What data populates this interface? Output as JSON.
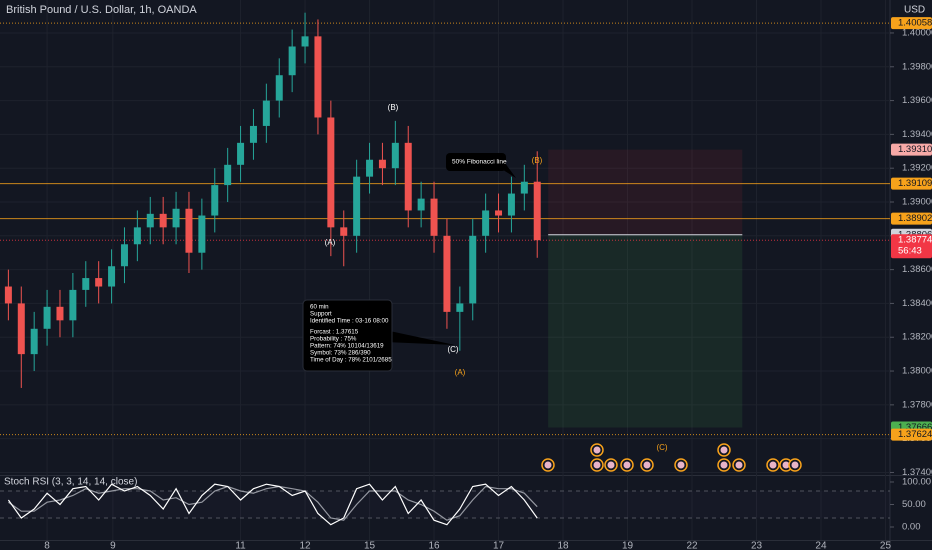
{
  "chart_data": [
    {
      "type": "candlestick",
      "title": "British Pound / U.S. Dollar, 1h, OANDA",
      "currency": "USD",
      "up_color": "#26a69a",
      "down_color": "#ef5350",
      "x": [
        -0.6,
        -0.4,
        -0.2,
        0.0,
        0.2,
        0.4,
        0.6,
        0.8,
        1.0,
        1.2,
        1.4,
        1.6,
        1.8,
        2.0,
        2.2,
        2.4,
        2.6,
        2.8,
        3.0,
        3.2,
        3.4,
        3.6,
        3.8,
        4.0,
        4.2,
        4.4,
        4.6,
        4.8,
        5.0,
        5.2,
        5.4,
        5.6,
        5.8,
        6.0,
        6.2,
        6.4,
        6.6,
        6.8,
        7.0,
        7.2,
        7.4,
        7.6
      ],
      "open": [
        1.385,
        1.384,
        1.381,
        1.3825,
        1.3838,
        1.383,
        1.3848,
        1.3855,
        1.385,
        1.3862,
        1.3875,
        1.3885,
        1.3893,
        1.3885,
        1.3896,
        1.387,
        1.3892,
        1.391,
        1.3922,
        1.3935,
        1.3945,
        1.396,
        1.3975,
        1.3992,
        1.3998,
        1.395,
        1.3885,
        1.388,
        1.3915,
        1.3925,
        1.392,
        1.3935,
        1.3895,
        1.3902,
        1.388,
        1.3835,
        1.384,
        1.388,
        1.3895,
        1.3892,
        1.3905,
        1.3912
      ],
      "high": [
        1.386,
        1.385,
        1.3835,
        1.3848,
        1.3848,
        1.3858,
        1.3865,
        1.3865,
        1.3872,
        1.3885,
        1.3895,
        1.3903,
        1.3903,
        1.3906,
        1.3906,
        1.3902,
        1.392,
        1.3932,
        1.3945,
        1.3955,
        1.397,
        1.3985,
        1.4002,
        1.4012,
        1.4008,
        1.396,
        1.3895,
        1.3925,
        1.3935,
        1.3935,
        1.3948,
        1.3945,
        1.3912,
        1.3912,
        1.389,
        1.385,
        1.389,
        1.3905,
        1.3905,
        1.3915,
        1.3922,
        1.393
      ],
      "low": [
        1.383,
        1.379,
        1.38,
        1.3815,
        1.382,
        1.382,
        1.3838,
        1.384,
        1.384,
        1.3852,
        1.3865,
        1.3875,
        1.3875,
        1.3875,
        1.3858,
        1.386,
        1.3882,
        1.39,
        1.3912,
        1.3925,
        1.3935,
        1.395,
        1.3965,
        1.3982,
        1.394,
        1.3868,
        1.3862,
        1.387,
        1.3905,
        1.391,
        1.391,
        1.3885,
        1.3885,
        1.387,
        1.3825,
        1.3812,
        1.383,
        1.387,
        1.3882,
        1.3882,
        1.3895,
        1.3867
      ],
      "close": [
        1.384,
        1.381,
        1.3825,
        1.3838,
        1.383,
        1.3848,
        1.3855,
        1.385,
        1.3862,
        1.3875,
        1.3885,
        1.3893,
        1.3885,
        1.3896,
        1.387,
        1.3892,
        1.391,
        1.3922,
        1.3935,
        1.3945,
        1.396,
        1.3975,
        1.3992,
        1.3998,
        1.395,
        1.3885,
        1.388,
        1.3915,
        1.3925,
        1.392,
        1.3935,
        1.3895,
        1.3902,
        1.388,
        1.3835,
        1.384,
        1.388,
        1.3895,
        1.3892,
        1.3905,
        1.3912,
        1.38774
      ],
      "xlim": [
        -0.73,
        13.07
      ],
      "xticks": [
        {
          "value": 0,
          "label": "8"
        },
        {
          "value": 1.02,
          "label": "9"
        },
        {
          "value": 3,
          "label": "11"
        },
        {
          "value": 4,
          "label": "12"
        },
        {
          "value": 5,
          "label": "15"
        },
        {
          "value": 6,
          "label": "16"
        },
        {
          "value": 7,
          "label": "17"
        },
        {
          "value": 8,
          "label": "18"
        },
        {
          "value": 9,
          "label": "19"
        },
        {
          "value": 10,
          "label": "22"
        },
        {
          "value": 11,
          "label": "23"
        },
        {
          "value": 12,
          "label": "24"
        },
        {
          "value": 13,
          "label": "25"
        }
      ],
      "ylim": [
        1.37385,
        1.40195
      ],
      "yticks": [
        {
          "value": 1.374,
          "label": "1.37400"
        },
        {
          "value": 1.376,
          "label": "1.37600"
        },
        {
          "value": 1.378,
          "label": "1.37800"
        },
        {
          "value": 1.38,
          "label": "1.38000"
        },
        {
          "value": 1.382,
          "label": "1.38200"
        },
        {
          "value": 1.384,
          "label": "1.38400"
        },
        {
          "value": 1.386,
          "label": "1.38600"
        },
        {
          "value": 1.388,
          "label": "1.38800"
        },
        {
          "value": 1.39,
          "label": "1.39000"
        },
        {
          "value": 1.392,
          "label": "1.39200"
        },
        {
          "value": 1.394,
          "label": "1.39400"
        },
        {
          "value": 1.396,
          "label": "1.39600"
        },
        {
          "value": 1.398,
          "label": "1.39800"
        },
        {
          "value": 1.4,
          "label": "1.40000"
        }
      ],
      "price_lines": [
        {
          "value": 1.40058,
          "label": "1.40058",
          "color": "#f7a21b",
          "text_color": "#131722",
          "line": "dotted"
        },
        {
          "value": 1.3931,
          "label": "1.39310",
          "color": "#f7a9a7",
          "text_color": "#131722",
          "line": "none"
        },
        {
          "value": 1.39109,
          "label": "1.39109",
          "color": "#f7a21b",
          "text_color": "#131722",
          "line": "solid"
        },
        {
          "value": 1.38902,
          "label": "1.38902",
          "color": "#f7a21b",
          "text_color": "#131722",
          "line": "solid"
        },
        {
          "value": 1.38806,
          "label": "1.38806",
          "color": "#d1d4dc",
          "text_color": "#131722",
          "line": "none"
        },
        {
          "value": 1.38774,
          "label": "1.38774",
          "color": "#f23645",
          "text_color": "#ffffff",
          "line": "dotted",
          "countdown": "56:43"
        },
        {
          "value": 1.37666,
          "label": "1.37666",
          "color": "#4caf50",
          "text_color": "#131722",
          "line": "none"
        },
        {
          "value": 1.37624,
          "label": "1.37624",
          "color": "#f7a21b",
          "text_color": "#131722",
          "line": "dotted"
        }
      ],
      "position": {
        "entry": 1.38806,
        "stop": 1.3931,
        "target": 1.37666,
        "from": 7.77,
        "to": 10.78
      },
      "annotations": [
        {
          "text": "(B)",
          "color": "#ffffff"
        },
        {
          "text": "(A)",
          "color": "#ffffff"
        },
        {
          "text": "(C)",
          "color": "#ffffff"
        },
        {
          "text": "(B)",
          "color": "#f7a21b"
        },
        {
          "text": "(A)",
          "color": "#f7a21b"
        },
        {
          "text": "(C)",
          "color": "#f7a21b"
        }
      ],
      "callouts": [
        {
          "lines": [
            "50% Fibonacci line"
          ]
        },
        {
          "lines": [
            "60 min",
            "Support",
            "Identified Time : 03-16 08:00",
            "Forcast : 1.37615",
            "Probability : 75%",
            "Pattern: 74% 10104/13619",
            "Symbol: 73% 286/390",
            "Time of Day : 78% 2101/2685"
          ]
        }
      ]
    },
    {
      "type": "line",
      "title": "Stoch RSI (3, 3, 14, 14, close)",
      "x": [
        -0.6,
        -0.4,
        -0.2,
        0.0,
        0.2,
        0.4,
        0.6,
        0.8,
        1.0,
        1.2,
        1.4,
        1.6,
        1.8,
        2.0,
        2.2,
        2.4,
        2.6,
        2.8,
        3.0,
        3.2,
        3.4,
        3.6,
        3.8,
        4.0,
        4.2,
        4.4,
        4.6,
        4.8,
        5.0,
        5.2,
        5.4,
        5.6,
        5.8,
        6.0,
        6.2,
        6.4,
        6.6,
        6.8,
        7.0,
        7.2,
        7.4,
        7.6
      ],
      "series": [
        {
          "color": "#ffffff",
          "values": [
            60,
            20,
            40,
            75,
            50,
            85,
            90,
            60,
            95,
            80,
            90,
            70,
            40,
            85,
            30,
            70,
            95,
            90,
            60,
            85,
            95,
            90,
            70,
            80,
            30,
            5,
            20,
            85,
            95,
            60,
            90,
            30,
            60,
            15,
            5,
            40,
            90,
            95,
            70,
            90,
            60,
            20
          ]
        },
        {
          "color": "#9598a1",
          "values": [
            55,
            35,
            35,
            55,
            60,
            70,
            85,
            75,
            80,
            85,
            85,
            80,
            60,
            65,
            50,
            55,
            80,
            90,
            80,
            75,
            85,
            90,
            85,
            80,
            55,
            20,
            15,
            50,
            80,
            80,
            80,
            60,
            50,
            35,
            15,
            25,
            60,
            90,
            85,
            85,
            75,
            45
          ]
        }
      ],
      "xlim": [
        -0.73,
        13.07
      ],
      "ylim": [
        -28.9,
        113.3
      ],
      "yticks": [
        {
          "value": 100,
          "label": "100.00"
        },
        {
          "value": 50,
          "label": "50.00"
        },
        {
          "value": 0,
          "label": "0.00"
        }
      ],
      "levels": [
        80,
        20
      ]
    }
  ]
}
